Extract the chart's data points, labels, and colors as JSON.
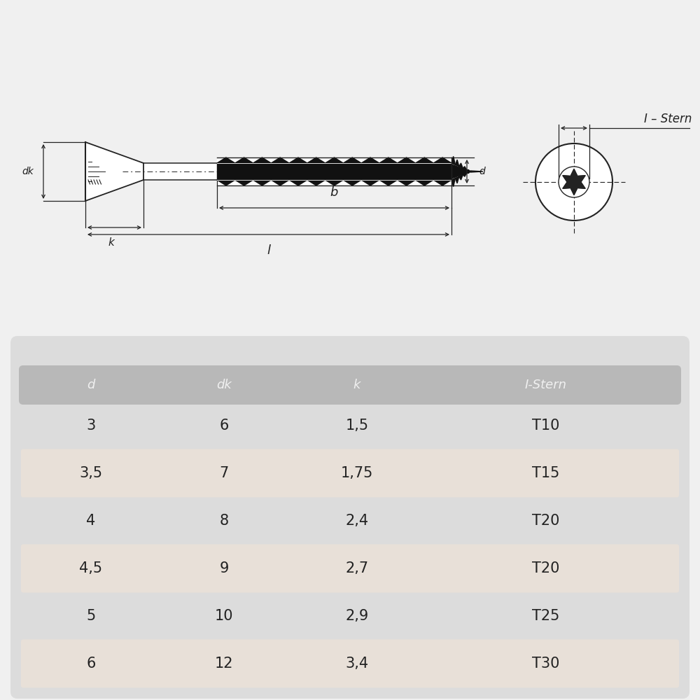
{
  "background_color": "#f0f0f0",
  "table_bg": "#dcdcdc",
  "table_row_alt_bg": "#e8e0d8",
  "table_header_bg": "#b8b8b8",
  "table_cols": [
    "d",
    "dk",
    "k",
    "I-Stern"
  ],
  "table_rows": [
    [
      "3",
      "6",
      "1,5",
      "T10"
    ],
    [
      "3,5",
      "7",
      "1,75",
      "T15"
    ],
    [
      "4",
      "8",
      "2,4",
      "T20"
    ],
    [
      "4,5",
      "9",
      "2,7",
      "T20"
    ],
    [
      "5",
      "10",
      "2,9",
      "T25"
    ],
    [
      "6",
      "12",
      "3,4",
      "T30"
    ]
  ],
  "line_color": "#222222",
  "text_color": "#222222",
  "screw_fill": "#111111",
  "white": "#ffffff"
}
